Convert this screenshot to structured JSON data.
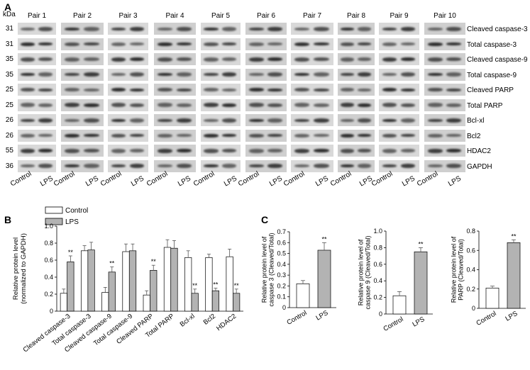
{
  "panel_a": {
    "letter": "A",
    "kda_label": "kDa",
    "pairs": [
      "Pair 1",
      "Pair 2",
      "Pair 3",
      "Pair 4",
      "Pair 5",
      "Pair 6",
      "Pair 7",
      "Pair 8",
      "Pair 9",
      "Pair 10"
    ],
    "rows": [
      {
        "mw": "31",
        "protein": "Cleaved caspase-3"
      },
      {
        "mw": "31",
        "protein": "Total caspase-3"
      },
      {
        "mw": "35",
        "protein": "Cleaved caspase-9"
      },
      {
        "mw": "35",
        "protein": "Total caspase-9"
      },
      {
        "mw": "25",
        "protein": "Cleaved PARP"
      },
      {
        "mw": "25",
        "protein": "Total PARP"
      },
      {
        "mw": "26",
        "protein": "Bcl-xl"
      },
      {
        "mw": "26",
        "protein": "Bcl2"
      },
      {
        "mw": "55",
        "protein": "HDAC2"
      },
      {
        "mw": "36",
        "protein": "GAPDH"
      }
    ],
    "lane_labels": [
      "Control",
      "LPS"
    ]
  },
  "panel_b": {
    "letter": "B",
    "legend": [
      "Control",
      "LPS"
    ],
    "chart_data": {
      "type": "bar",
      "ylabel": "Relative protein level (normalized to GAPDH)",
      "ylim": [
        0,
        1.0
      ],
      "yticks": [
        "0",
        "0.2",
        "0.4",
        "0.6",
        "0.8",
        "1.0"
      ],
      "categories": [
        "Cleaved caspase-3",
        "Total caspase-3",
        "Cleaved caspase-9",
        "Total caspase-9",
        "Cleaved PARP",
        "Total PARP",
        "Bcl-xl",
        "Bcl2",
        "HDAC2"
      ],
      "series": [
        {
          "name": "Control",
          "values": [
            0.21,
            0.71,
            0.22,
            0.7,
            0.19,
            0.75,
            0.63,
            0.63,
            0.64
          ],
          "errors": [
            0.05,
            0.06,
            0.06,
            0.09,
            0.05,
            0.09,
            0.08,
            0.04,
            0.09
          ]
        },
        {
          "name": "LPS",
          "values": [
            0.58,
            0.72,
            0.46,
            0.71,
            0.48,
            0.74,
            0.21,
            0.24,
            0.21
          ],
          "errors": [
            0.07,
            0.09,
            0.06,
            0.08,
            0.06,
            0.09,
            0.05,
            0.03,
            0.05
          ]
        }
      ],
      "significance": [
        "**",
        "",
        "**",
        "",
        "**",
        "",
        "**",
        "**",
        "**"
      ]
    }
  },
  "panel_c": {
    "letter": "C",
    "charts": [
      {
        "type": "bar",
        "ylabel": "Relative protein level of caspase 3 (Cleaved/Total)",
        "ylim": [
          0,
          0.7
        ],
        "yticks": [
          "0",
          "0.1",
          "0.2",
          "0.3",
          "0.4",
          "0.5",
          "0.6",
          "0.7"
        ],
        "categories": [
          "Control",
          "LPS"
        ],
        "values": [
          0.22,
          0.53
        ],
        "errors": [
          0.03,
          0.07
        ],
        "significance": [
          "",
          "**"
        ]
      },
      {
        "type": "bar",
        "ylabel": "Relative protein level of caspase 9 (Cleaved/Total)",
        "ylim": [
          0,
          1.0
        ],
        "yticks": [
          "0",
          "0.2",
          "0.4",
          "0.6",
          "0.8",
          "1.0"
        ],
        "categories": [
          "Control",
          "LPS"
        ],
        "values": [
          0.22,
          0.75
        ],
        "errors": [
          0.05,
          0.05
        ],
        "significance": [
          "",
          "**"
        ]
      },
      {
        "type": "bar",
        "ylabel": "Relative protein level of PARP (Cleaved/Total)",
        "ylim": [
          0,
          0.8
        ],
        "yticks": [
          "0",
          "0.2",
          "0.4",
          "0.6",
          "0.8"
        ],
        "categories": [
          "Control",
          "LPS"
        ],
        "values": [
          0.21,
          0.68
        ],
        "errors": [
          0.02,
          0.03
        ],
        "significance": [
          "",
          "**"
        ]
      }
    ]
  }
}
